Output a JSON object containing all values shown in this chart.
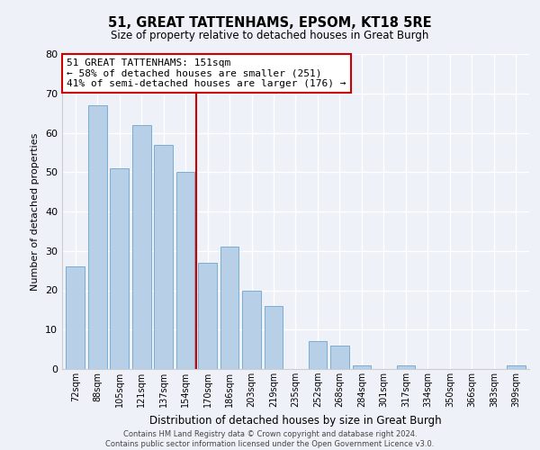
{
  "title": "51, GREAT TATTENHAMS, EPSOM, KT18 5RE",
  "subtitle": "Size of property relative to detached houses in Great Burgh",
  "xlabel": "Distribution of detached houses by size in Great Burgh",
  "ylabel": "Number of detached properties",
  "bar_labels": [
    "72sqm",
    "88sqm",
    "105sqm",
    "121sqm",
    "137sqm",
    "154sqm",
    "170sqm",
    "186sqm",
    "203sqm",
    "219sqm",
    "235sqm",
    "252sqm",
    "268sqm",
    "284sqm",
    "301sqm",
    "317sqm",
    "334sqm",
    "350sqm",
    "366sqm",
    "383sqm",
    "399sqm"
  ],
  "bar_values": [
    26,
    67,
    51,
    62,
    57,
    50,
    27,
    31,
    20,
    16,
    0,
    7,
    6,
    1,
    0,
    1,
    0,
    0,
    0,
    0,
    1
  ],
  "bar_color": "#b8cfe8",
  "bar_edgecolor": "#7aadd4",
  "vline_x": 5.5,
  "vline_color": "#cc0000",
  "ylim": [
    0,
    80
  ],
  "yticks": [
    0,
    10,
    20,
    30,
    40,
    50,
    60,
    70,
    80
  ],
  "annotation_title": "51 GREAT TATTENHAMS: 151sqm",
  "annotation_line1": "← 58% of detached houses are smaller (251)",
  "annotation_line2": "41% of semi-detached houses are larger (176) →",
  "annotation_box_color": "#ffffff",
  "annotation_box_edgecolor": "#cc0000",
  "footer1": "Contains HM Land Registry data © Crown copyright and database right 2024.",
  "footer2": "Contains public sector information licensed under the Open Government Licence v3.0.",
  "background_color": "#eef2f8"
}
